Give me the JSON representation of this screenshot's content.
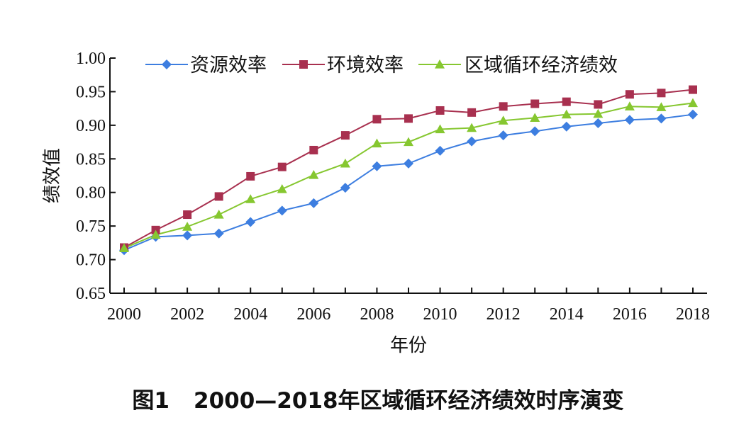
{
  "chart_data": {
    "type": "line",
    "xlabel": "年份",
    "ylabel": "绩效值",
    "x": [
      2000,
      2001,
      2002,
      2003,
      2004,
      2005,
      2006,
      2007,
      2008,
      2009,
      2010,
      2011,
      2012,
      2013,
      2014,
      2015,
      2016,
      2017,
      2018
    ],
    "x_ticks": [
      "2000",
      "2002",
      "2004",
      "2006",
      "2008",
      "2010",
      "2012",
      "2014",
      "2016",
      "2018"
    ],
    "y_ticks": [
      "1.00",
      "0.95",
      "0.90",
      "0.85",
      "0.80",
      "0.75",
      "0.70",
      "0.65"
    ],
    "xlim": [
      2000,
      2018
    ],
    "ylim": [
      0.65,
      1.0
    ],
    "grid": false,
    "legend_position": "top",
    "series": [
      {
        "name": "资源效率",
        "marker": "diamond",
        "color": "#3d7ee0",
        "values": [
          0.714,
          0.734,
          0.736,
          0.739,
          0.756,
          0.773,
          0.784,
          0.807,
          0.839,
          0.843,
          0.862,
          0.876,
          0.885,
          0.891,
          0.898,
          0.903,
          0.908,
          0.91,
          0.916
        ]
      },
      {
        "name": "环境效率",
        "marker": "square",
        "color": "#a8304f",
        "values": [
          0.718,
          0.744,
          0.767,
          0.794,
          0.824,
          0.838,
          0.863,
          0.885,
          0.909,
          0.91,
          0.922,
          0.919,
          0.928,
          0.932,
          0.935,
          0.931,
          0.946,
          0.948,
          0.953
        ]
      },
      {
        "name": "区域循环经济绩效",
        "marker": "triangle",
        "color": "#86c730",
        "values": [
          0.717,
          0.737,
          0.749,
          0.767,
          0.79,
          0.805,
          0.826,
          0.843,
          0.873,
          0.875,
          0.894,
          0.896,
          0.907,
          0.911,
          0.916,
          0.917,
          0.928,
          0.927,
          0.933
        ]
      }
    ]
  },
  "caption": {
    "figure_label": "图1",
    "title": "2000—2018年区域循环经济绩效时序演变"
  }
}
